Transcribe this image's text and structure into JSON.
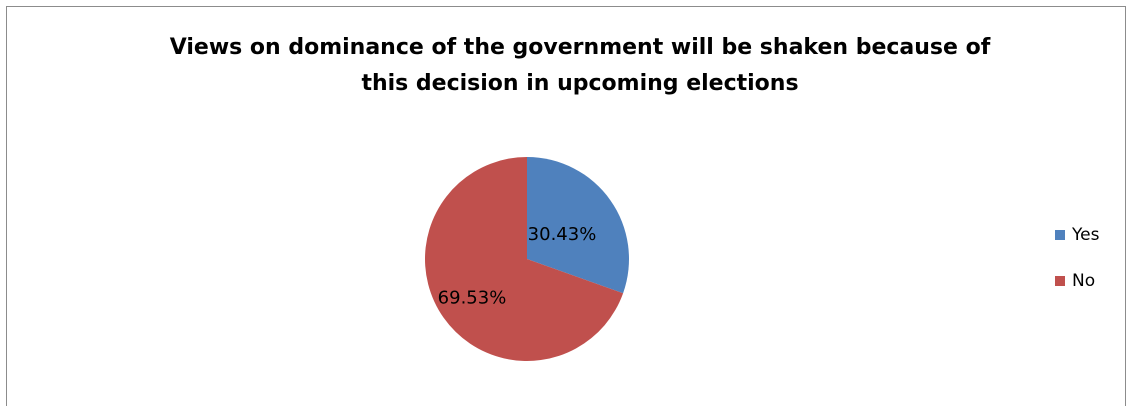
{
  "chart_data": {
    "type": "pie",
    "title": "Views on dominance of the government will be shaken because of this decision in upcoming elections",
    "title_lines": [
      "Views on dominance of the government will be shaken because of",
      "this decision in upcoming elections"
    ],
    "categories": [
      "Yes",
      "No"
    ],
    "values": [
      30.43,
      69.53
    ],
    "data_labels": [
      "30.43%",
      "69.53%"
    ],
    "colors": [
      "#4F81BD",
      "#C0504D"
    ],
    "legend_placement": "right"
  }
}
